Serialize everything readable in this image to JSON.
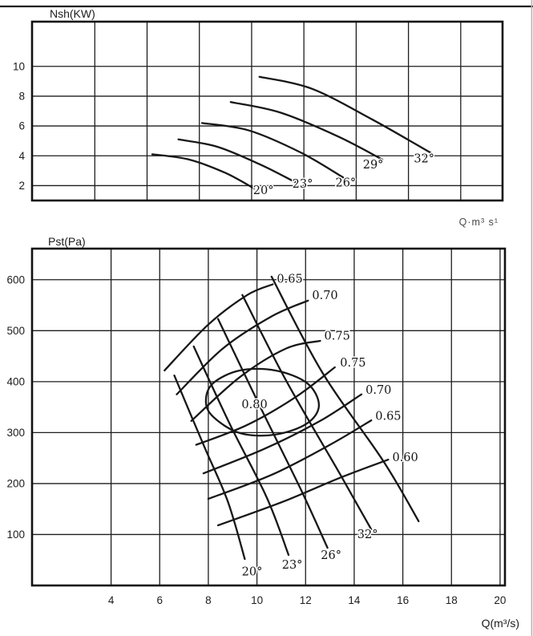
{
  "page": {
    "background": "#ffffff",
    "ink_color": "#1c1c1c"
  },
  "chart_data": [
    {
      "id": "shaft-power-chart",
      "type": "line",
      "title": "Nsh(KW)",
      "xlabel": "Q·m³ s¹",
      "ylabel": "",
      "x_range": [
        -0.4,
        17.6
      ],
      "y_range": [
        1,
        13
      ],
      "x_gridlines": [
        2,
        4,
        6,
        8,
        10,
        12,
        14,
        16
      ],
      "x_ticks": [],
      "y_ticks": [
        2,
        4,
        6,
        8,
        10
      ],
      "grid": true,
      "legend": "none",
      "series": [
        {
          "name": "power-curve-20deg",
          "label": "20°",
          "label_at": [
            8.45,
            1.42
          ],
          "points": [
            [
              4.2,
              4.1
            ],
            [
              5.6,
              3.75
            ],
            [
              7.0,
              2.85
            ],
            [
              8.1,
              1.8
            ]
          ]
        },
        {
          "name": "power-curve-23deg",
          "label": "23°",
          "label_at": [
            9.95,
            1.85
          ],
          "points": [
            [
              5.2,
              5.1
            ],
            [
              6.7,
              4.6
            ],
            [
              8.35,
              3.4
            ],
            [
              9.7,
              2.2
            ]
          ]
        },
        {
          "name": "power-curve-26deg",
          "label": "26°",
          "label_at": [
            11.6,
            1.95
          ],
          "points": [
            [
              6.1,
              6.2
            ],
            [
              7.9,
              5.7
            ],
            [
              9.9,
              4.2
            ],
            [
              11.5,
              2.55
            ]
          ]
        },
        {
          "name": "power-curve-29deg",
          "label": "29°",
          "label_at": [
            12.65,
            3.15
          ],
          "points": [
            [
              7.2,
              7.6
            ],
            [
              9.1,
              6.9
            ],
            [
              11.3,
              5.3
            ],
            [
              13.0,
              3.75
            ]
          ]
        },
        {
          "name": "power-curve-32deg",
          "label": "32°",
          "label_at": [
            14.6,
            3.55
          ],
          "points": [
            [
              8.3,
              9.3
            ],
            [
              10.3,
              8.5
            ],
            [
              12.6,
              6.45
            ],
            [
              14.85,
              4.2
            ]
          ]
        }
      ]
    },
    {
      "id": "static-pressure-chart",
      "type": "line",
      "title": "Pst(Pa)",
      "xlabel": "Q(m³/s)",
      "ylabel": "",
      "x_range": [
        0.75,
        20.2
      ],
      "y_range": [
        0,
        661
      ],
      "x_gridlines": [
        4,
        6,
        8,
        10,
        12,
        14,
        16,
        18,
        20
      ],
      "x_ticks": [
        4,
        6,
        8,
        10,
        12,
        14,
        16,
        18,
        20
      ],
      "y_ticks": [
        100,
        200,
        300,
        400,
        500,
        600
      ],
      "grid": true,
      "legend": "none",
      "series": [
        {
          "name": "pressure-curve-20deg",
          "label": "20°",
          "label_at": [
            9.8,
            20
          ],
          "points": [
            [
              6.6,
              412
            ],
            [
              7.8,
              276
            ],
            [
              8.8,
              165
            ],
            [
              9.5,
              52
            ]
          ]
        },
        {
          "name": "pressure-curve-23deg",
          "label": "23°",
          "label_at": [
            11.45,
            33
          ],
          "points": [
            [
              7.4,
              469
            ],
            [
              8.9,
              315
            ],
            [
              10.4,
              173
            ],
            [
              11.3,
              60
            ]
          ]
        },
        {
          "name": "pressure-curve-26deg",
          "label": "26°",
          "label_at": [
            13.05,
            52
          ],
          "points": [
            [
              8.4,
              523
            ],
            [
              10.1,
              354
            ],
            [
              11.8,
              189
            ],
            [
              12.9,
              74
            ]
          ]
        },
        {
          "name": "pressure-curve-29deg",
          "label": "",
          "label_at": null,
          "points": [
            [
              9.4,
              570
            ],
            [
              11.2,
              402
            ],
            [
              13.4,
              220
            ],
            [
              14.7,
              110
            ]
          ]
        },
        {
          "name": "pressure-curve-32deg",
          "label": "32°",
          "label_at": [
            14.55,
            93
          ],
          "points": [
            [
              10.6,
              606
            ],
            [
              12.7,
              417
            ],
            [
              15.2,
              244
            ],
            [
              16.65,
              126
            ]
          ]
        },
        {
          "name": "efficiency-065-upper",
          "label": "0.65",
          "label_at": [
            11.35,
            594
          ],
          "points": [
            [
              6.2,
              422
            ],
            [
              8.0,
              512
            ],
            [
              9.6,
              570
            ],
            [
              10.65,
              591
            ]
          ]
        },
        {
          "name": "efficiency-070-upper",
          "label": "0.70",
          "label_at": [
            12.8,
            562
          ],
          "points": [
            [
              6.7,
              375
            ],
            [
              8.6,
              465
            ],
            [
              10.6,
              528
            ],
            [
              12.1,
              559
            ]
          ]
        },
        {
          "name": "efficiency-075-upper",
          "label": "0.75",
          "label_at": [
            13.3,
            482
          ],
          "points": [
            [
              7.3,
              323
            ],
            [
              9.3,
              409
            ],
            [
              11.2,
              465
            ],
            [
              12.6,
              480
            ]
          ]
        },
        {
          "name": "efficiency-075-lower",
          "label": "0.75",
          "label_at": [
            13.95,
            430
          ],
          "points": [
            [
              7.5,
              276
            ],
            [
              9.6,
              315
            ],
            [
              11.6,
              370
            ],
            [
              13.2,
              428
            ]
          ]
        },
        {
          "name": "efficiency-070-lower",
          "label": "0.70",
          "label_at": [
            15.0,
            376
          ],
          "points": [
            [
              7.8,
              220
            ],
            [
              10.3,
              268
            ],
            [
              12.6,
              323
            ],
            [
              14.3,
              375
            ]
          ]
        },
        {
          "name": "efficiency-065-lower",
          "label": "0.65",
          "label_at": [
            15.4,
            325
          ],
          "points": [
            [
              8.0,
              170
            ],
            [
              10.6,
              217
            ],
            [
              13.0,
              276
            ],
            [
              14.7,
              324
            ]
          ]
        },
        {
          "name": "efficiency-060-lower",
          "label": "0.60",
          "label_at": [
            16.1,
            244
          ],
          "points": [
            [
              8.4,
              118
            ],
            [
              11.1,
              165
            ],
            [
              13.5,
              213
            ],
            [
              15.4,
              247
            ]
          ]
        },
        {
          "name": "efficiency-080-island",
          "label": "0.80",
          "label_at": [
            9.9,
            348
          ],
          "closed": true,
          "points": [
            [
              8.2,
              397
            ],
            [
              9.3,
              422
            ],
            [
              10.75,
              422
            ],
            [
              12.06,
              397
            ],
            [
              12.55,
              354
            ],
            [
              12.06,
              318
            ],
            [
              10.75,
              296
            ],
            [
              9.3,
              299
            ],
            [
              8.2,
              331
            ],
            [
              7.9,
              362
            ]
          ]
        }
      ]
    }
  ]
}
